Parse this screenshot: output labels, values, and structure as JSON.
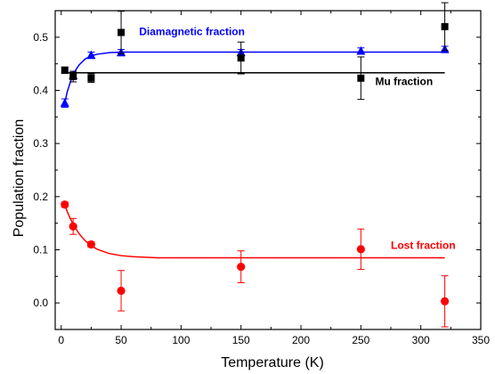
{
  "chart_data": {
    "type": "scatter",
    "title": "",
    "xlabel": "Temperature (K)",
    "ylabel": "Population fraction",
    "xlim": [
      -5,
      350
    ],
    "ylim": [
      -0.05,
      0.55
    ],
    "xticks": [
      0,
      50,
      100,
      150,
      200,
      250,
      300,
      350
    ],
    "yticks": [
      0.0,
      0.1,
      0.2,
      0.3,
      0.4,
      0.5
    ],
    "tick_labels_x": [
      "0",
      "50",
      "100",
      "150",
      "200",
      "250",
      "300",
      "350"
    ],
    "tick_labels_y": [
      "0.0",
      "0.1",
      "0.2",
      "0.3",
      "0.4",
      "0.5"
    ],
    "grid": false,
    "series": [
      {
        "name": "Diamagnetic fraction",
        "color": "#0000ff",
        "marker": "triangle",
        "x": [
          3,
          10,
          25,
          50,
          150,
          250,
          320
        ],
        "y": [
          0.376,
          0.428,
          0.466,
          0.471,
          0.471,
          0.474,
          0.477
        ],
        "yerr": [
          0.008,
          0.006,
          0.006,
          0.006,
          0.006,
          0.006,
          0.006
        ],
        "fit": {
          "x": [
            3,
            5,
            8,
            10,
            12,
            15,
            20,
            25,
            30,
            40,
            50,
            60,
            80,
            100,
            150,
            200,
            250,
            300,
            320
          ],
          "y": [
            0.376,
            0.397,
            0.418,
            0.43,
            0.438,
            0.448,
            0.459,
            0.465,
            0.468,
            0.471,
            0.472,
            0.472,
            0.472,
            0.472,
            0.472,
            0.472,
            0.472,
            0.472,
            0.472
          ]
        }
      },
      {
        "name": "Mu fraction",
        "color": "#000000",
        "marker": "square",
        "x": [
          3,
          10,
          25,
          50,
          150,
          250,
          320
        ],
        "y": [
          0.438,
          0.426,
          0.423,
          0.509,
          0.461,
          0.423,
          0.52
        ],
        "yerr": [
          0.006,
          0.01,
          0.008,
          0.04,
          0.03,
          0.04,
          0.045
        ],
        "fit": {
          "x": [
            3,
            320
          ],
          "y": [
            0.433,
            0.433
          ]
        }
      },
      {
        "name": "Lost fraction",
        "color": "#ff0000",
        "marker": "circle",
        "x": [
          3,
          10,
          25,
          50,
          150,
          250,
          320
        ],
        "y": [
          0.185,
          0.144,
          0.11,
          0.023,
          0.068,
          0.101,
          0.003
        ],
        "yerr": [
          0.005,
          0.015,
          0.005,
          0.038,
          0.03,
          0.038,
          0.048
        ],
        "fit": {
          "x": [
            3,
            5,
            8,
            10,
            15,
            20,
            25,
            30,
            40,
            50,
            60,
            80,
            100,
            150,
            200,
            250,
            300,
            320
          ],
          "y": [
            0.185,
            0.172,
            0.157,
            0.148,
            0.13,
            0.117,
            0.108,
            0.101,
            0.093,
            0.089,
            0.087,
            0.085,
            0.085,
            0.085,
            0.085,
            0.085,
            0.085,
            0.085
          ]
        }
      }
    ],
    "annotations": [
      {
        "text": "Diamagnetic fraction",
        "x": 65,
        "y": 0.504,
        "color": "#0000ff",
        "anchor": "start"
      },
      {
        "text": "Mu fraction",
        "x": 262,
        "y": 0.41,
        "color": "#000000",
        "anchor": "start"
      },
      {
        "text": "Lost fraction",
        "x": 275,
        "y": 0.102,
        "color": "#ff0000",
        "anchor": "start"
      }
    ]
  }
}
